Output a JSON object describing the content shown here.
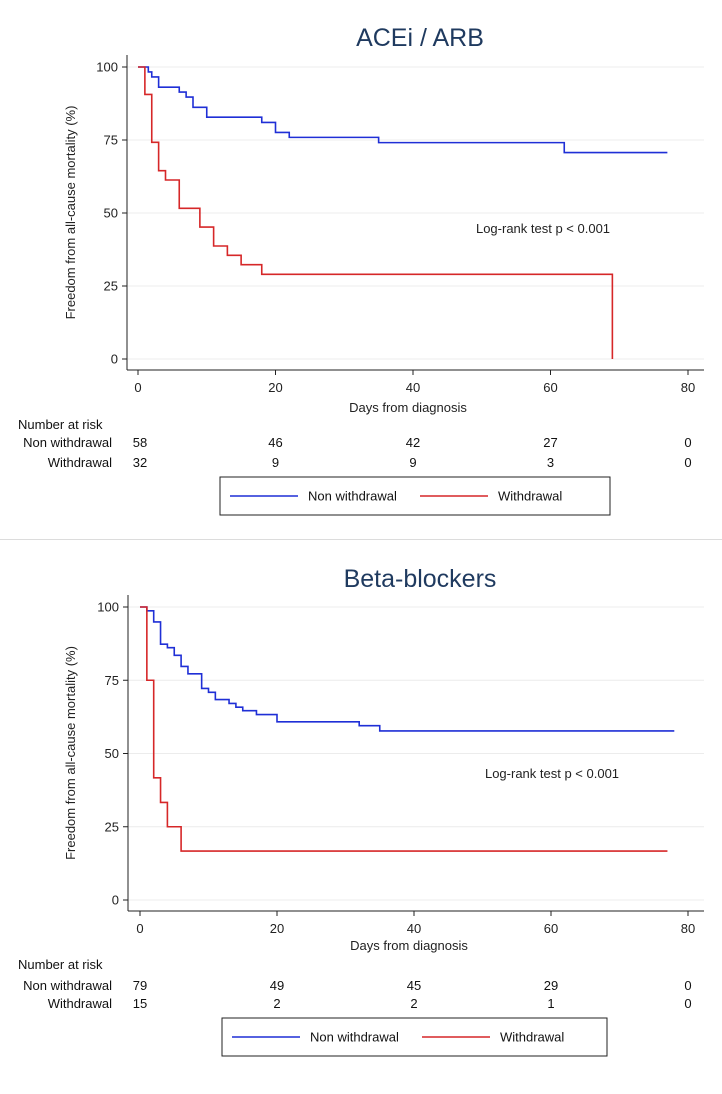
{
  "chart_data": [
    {
      "type": "line",
      "subtype": "kaplan-meier",
      "title": "ACEi / ARB",
      "xlabel": "Days from diagnosis",
      "ylabel": "Freedom from all-cause mortality (%)",
      "xlim": [
        -3,
        81
      ],
      "ylim": [
        -3,
        103
      ],
      "xticks": [
        0,
        20,
        40,
        60,
        80
      ],
      "yticks": [
        0,
        25,
        50,
        75,
        100
      ],
      "grid": true,
      "annotation": "Log-rank test p < 0.001",
      "series": [
        {
          "name": "Non withdrawal",
          "color": "#1f2fd6",
          "x": [
            0,
            1.5,
            2,
            3,
            6,
            7,
            8,
            10,
            18,
            20,
            22,
            35,
            62,
            77
          ],
          "y": [
            100,
            98.3,
            96.6,
            93.1,
            91.4,
            89.7,
            86.2,
            82.8,
            81.0,
            77.6,
            75.9,
            74.1,
            70.7,
            70.7
          ]
        },
        {
          "name": "Withdrawal",
          "color": "#d62728",
          "x": [
            0,
            1,
            2,
            3,
            4,
            6,
            9,
            11,
            13,
            15,
            18,
            69,
            69
          ],
          "y": [
            100,
            90.6,
            74.2,
            64.5,
            61.3,
            51.6,
            45.2,
            38.7,
            35.5,
            32.3,
            29.0,
            29.0,
            0
          ]
        }
      ],
      "risk_table": {
        "header": "Number at risk",
        "times": [
          0,
          20,
          40,
          60,
          80
        ],
        "rows": [
          {
            "label": "Non withdrawal",
            "values": [
              "58",
              "46",
              "42",
              "27",
              "0"
            ]
          },
          {
            "label": "Withdrawal",
            "values": [
              "32",
              "9",
              "9",
              "3",
              "0"
            ]
          }
        ]
      },
      "legend": {
        "position": "bottom",
        "items": [
          "Non withdrawal",
          "Withdrawal"
        ]
      }
    },
    {
      "type": "line",
      "subtype": "kaplan-meier",
      "title": "Beta-blockers",
      "xlabel": "Days from diagnosis",
      "ylabel": "Freedom from all-cause mortality (%)",
      "xlim": [
        -3,
        81
      ],
      "ylim": [
        -3,
        103
      ],
      "xticks": [
        0,
        20,
        40,
        60,
        80
      ],
      "yticks": [
        0,
        25,
        50,
        75,
        100
      ],
      "grid": true,
      "annotation": "Log-rank test p < 0.001",
      "series": [
        {
          "name": "Non withdrawal",
          "color": "#1f2fd6",
          "x": [
            0,
            1,
            2,
            3,
            4,
            5,
            6,
            7,
            9,
            10,
            11,
            13,
            14,
            15,
            17,
            20,
            32,
            35,
            78
          ],
          "y": [
            100,
            98.7,
            94.9,
            87.3,
            86.1,
            83.5,
            79.7,
            77.2,
            72.2,
            70.9,
            68.4,
            67.1,
            65.8,
            64.6,
            63.3,
            60.8,
            59.5,
            57.7,
            57.7
          ]
        },
        {
          "name": "Withdrawal",
          "color": "#d62728",
          "x": [
            0,
            1,
            2,
            3,
            4,
            6,
            77
          ],
          "y": [
            100,
            75,
            41.7,
            33.3,
            25,
            16.7,
            16.7
          ]
        }
      ],
      "risk_table": {
        "header": "Number at risk",
        "times": [
          0,
          20,
          40,
          60,
          80
        ],
        "rows": [
          {
            "label": "Non withdrawal",
            "values": [
              "79",
              "49",
              "45",
              "29",
              "0"
            ]
          },
          {
            "label": "Withdrawal",
            "values": [
              "15",
              "2",
              "2",
              "1",
              "0"
            ]
          }
        ]
      },
      "legend": {
        "position": "bottom",
        "items": [
          "Non withdrawal",
          "Withdrawal"
        ]
      }
    }
  ]
}
